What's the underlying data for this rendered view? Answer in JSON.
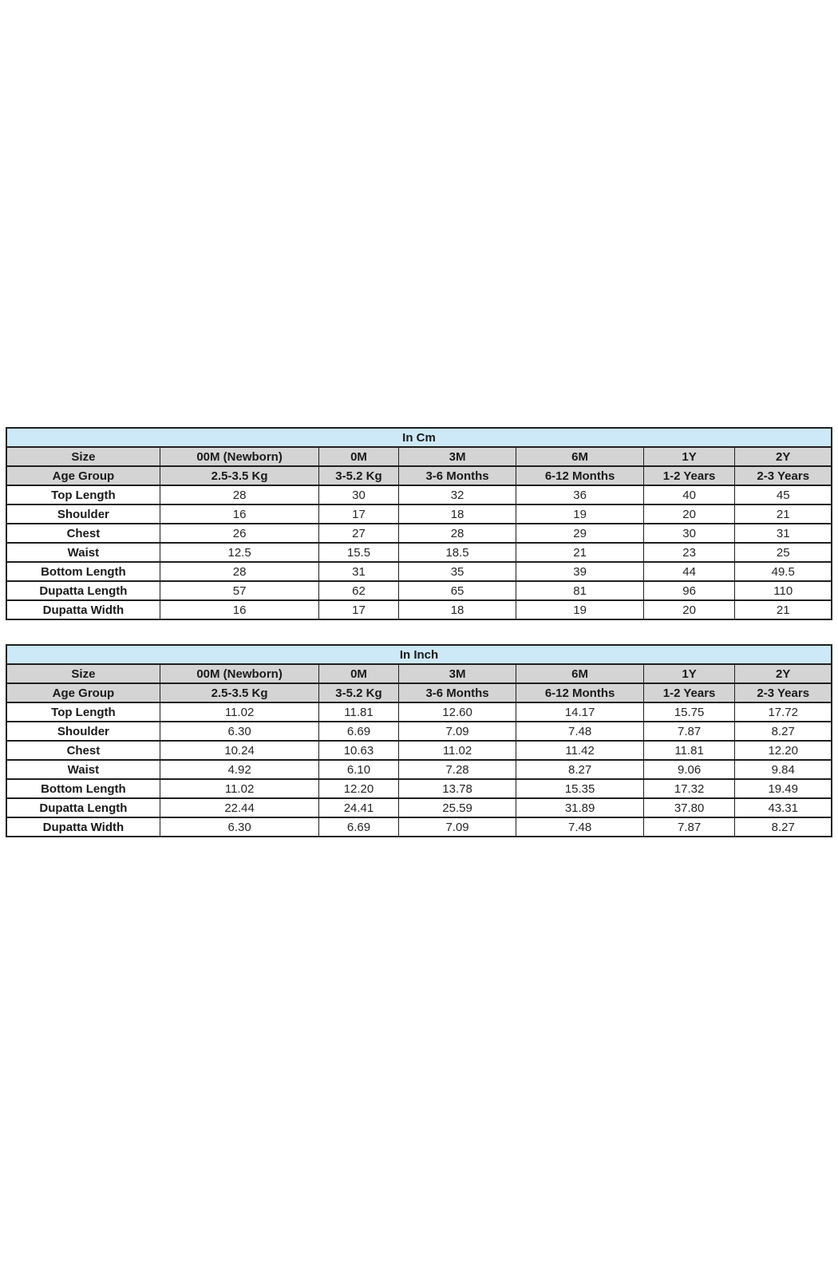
{
  "colors": {
    "title_bg": "#cde8f6",
    "header_bg": "#d4d4d4",
    "border": "#1f1f1f",
    "title_text": "#1a1a1a",
    "value_text": "#262626"
  },
  "tables": [
    {
      "title": "In Cm",
      "size_label": "Size",
      "age_label": "Age Group",
      "sizes": [
        "00M (Newborn)",
        "0M",
        "3M",
        "6M",
        "1Y",
        "2Y"
      ],
      "age_groups": [
        "2.5-3.5 Kg",
        "3-5.2 Kg",
        "3-6 Months",
        "6-12 Months",
        "1-2 Years",
        "2-3 Years"
      ],
      "rows": [
        {
          "label": "Top Length",
          "values": [
            "28",
            "30",
            "32",
            "36",
            "40",
            "45"
          ]
        },
        {
          "label": "Shoulder",
          "values": [
            "16",
            "17",
            "18",
            "19",
            "20",
            "21"
          ]
        },
        {
          "label": "Chest",
          "values": [
            "26",
            "27",
            "28",
            "29",
            "30",
            "31"
          ]
        },
        {
          "label": "Waist",
          "values": [
            "12.5",
            "15.5",
            "18.5",
            "21",
            "23",
            "25"
          ]
        },
        {
          "label": "Bottom Length",
          "values": [
            "28",
            "31",
            "35",
            "39",
            "44",
            "49.5"
          ]
        },
        {
          "label": "Dupatta Length",
          "values": [
            "57",
            "62",
            "65",
            "81",
            "96",
            "110"
          ]
        },
        {
          "label": "Dupatta Width",
          "values": [
            "16",
            "17",
            "18",
            "19",
            "20",
            "21"
          ]
        }
      ]
    },
    {
      "title": "In Inch",
      "size_label": "Size",
      "age_label": "Age Group",
      "sizes": [
        "00M (Newborn)",
        "0M",
        "3M",
        "6M",
        "1Y",
        "2Y"
      ],
      "age_groups": [
        "2.5-3.5 Kg",
        "3-5.2 Kg",
        "3-6 Months",
        "6-12 Months",
        "1-2 Years",
        "2-3 Years"
      ],
      "rows": [
        {
          "label": "Top Length",
          "values": [
            "11.02",
            "11.81",
            "12.60",
            "14.17",
            "15.75",
            "17.72"
          ]
        },
        {
          "label": "Shoulder",
          "values": [
            "6.30",
            "6.69",
            "7.09",
            "7.48",
            "7.87",
            "8.27"
          ]
        },
        {
          "label": "Chest",
          "values": [
            "10.24",
            "10.63",
            "11.02",
            "11.42",
            "11.81",
            "12.20"
          ]
        },
        {
          "label": "Waist",
          "values": [
            "4.92",
            "6.10",
            "7.28",
            "8.27",
            "9.06",
            "9.84"
          ]
        },
        {
          "label": "Bottom Length",
          "values": [
            "11.02",
            "12.20",
            "13.78",
            "15.35",
            "17.32",
            "19.49"
          ]
        },
        {
          "label": "Dupatta Length",
          "values": [
            "22.44",
            "24.41",
            "25.59",
            "31.89",
            "37.80",
            "43.31"
          ]
        },
        {
          "label": "Dupatta Width",
          "values": [
            "6.30",
            "6.69",
            "7.09",
            "7.48",
            "7.87",
            "8.27"
          ]
        }
      ]
    }
  ]
}
